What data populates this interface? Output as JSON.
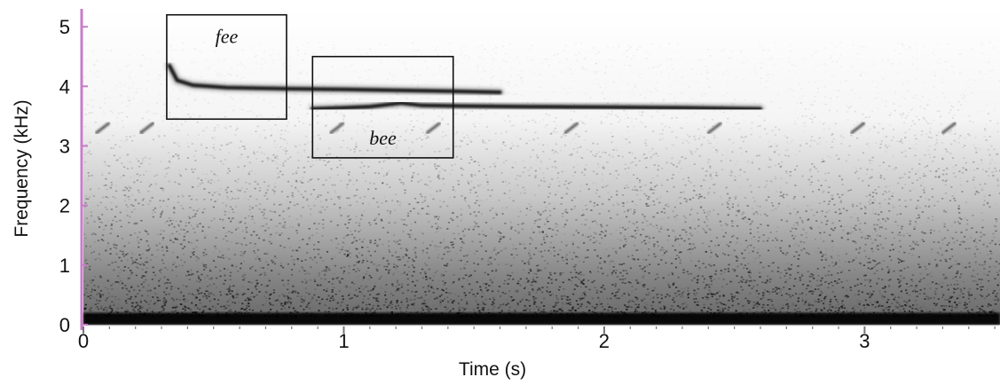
{
  "chart_data": {
    "type": "heatmap",
    "kind": "spectrogram",
    "title": "",
    "xlabel": "Time (s)",
    "ylabel": "Frequency (kHz)",
    "xlim": [
      0,
      3.52
    ],
    "ylim": [
      0,
      5.3
    ],
    "x_ticks": [
      "0",
      "1",
      "2",
      "3"
    ],
    "x_tick_values": [
      0,
      1,
      2,
      3
    ],
    "y_ticks": [
      "0",
      "1",
      "2",
      "3",
      "4",
      "5"
    ],
    "y_tick_values": [
      0,
      1,
      2,
      3,
      4,
      5
    ],
    "grid": false,
    "colormap": "grayscale",
    "axis_color": "#c77dc7",
    "annotations": [
      {
        "label": "fee",
        "t_start": 0.32,
        "t_end": 0.78,
        "f_low": 3.45,
        "f_high": 5.2
      },
      {
        "label": "bee",
        "t_start": 0.88,
        "t_end": 1.42,
        "f_low": 2.8,
        "f_high": 4.5
      }
    ],
    "features": [
      {
        "name": "fee",
        "points": [
          [
            0.33,
            4.35
          ],
          [
            0.36,
            4.1
          ],
          [
            0.42,
            4.02
          ],
          [
            0.55,
            3.98
          ],
          [
            0.78,
            3.96
          ],
          [
            1.0,
            3.95
          ],
          [
            1.4,
            3.92
          ],
          [
            1.6,
            3.9
          ]
        ]
      },
      {
        "name": "bee",
        "points": [
          [
            0.88,
            3.62
          ],
          [
            1.0,
            3.64
          ],
          [
            1.1,
            3.66
          ],
          [
            1.22,
            3.72
          ],
          [
            1.3,
            3.68
          ],
          [
            1.45,
            3.67
          ],
          [
            1.7,
            3.66
          ],
          [
            2.0,
            3.65
          ],
          [
            2.3,
            3.64
          ],
          [
            2.6,
            3.62
          ]
        ]
      },
      {
        "name": "low-band",
        "f_low": 0.0,
        "f_high": 0.2
      }
    ],
    "chirp_times": [
      0.05,
      0.22,
      0.95,
      1.32,
      1.85,
      2.4,
      2.95,
      3.3
    ]
  }
}
